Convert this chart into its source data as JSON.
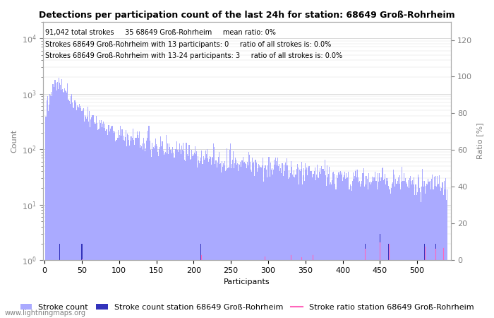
{
  "title": "Detections per participation count of the last 24h for station: 68649 Groß-Rohrheim",
  "annotation_line1": "91,042 total strokes     35 68649 Groß-Rohrheim     mean ratio: 0%",
  "annotation_line2": "Strokes 68649 Groß-Rohrheim with 13 participants: 0     ratio of all strokes is: 0.0%",
  "annotation_line3": "Strokes 68649 Groß-Rohrheim with 13-24 participants: 3     ratio of all strokes is: 0.0%",
  "ylabel_left": "Count",
  "ylabel_right": "Ratio [%]",
  "xlabel": "Participants",
  "watermark": "www.lightningmaps.org",
  "legend1": "Stroke count",
  "legend2": "Stroke count station 68649 Groß-Rohrheim",
  "legend3": "Stroke ratio station 68649 Groß-Rohrheim",
  "bar_color_main": "#aaaaff",
  "bar_color_station": "#3333bb",
  "ratio_line_color": "#ff66bb",
  "total_strokes": 91042,
  "station_strokes": 35,
  "max_participants": 540,
  "title_fontsize": 9,
  "annotation_fontsize": 7,
  "axis_fontsize": 8,
  "legend_fontsize": 8
}
